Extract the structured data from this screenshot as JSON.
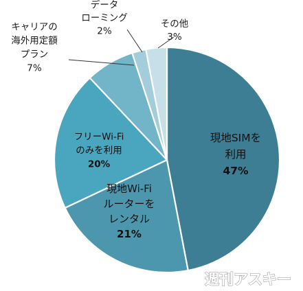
{
  "chart_data": {
    "type": "pie",
    "title": "",
    "start": "12 o'clock",
    "direction": "clockwise",
    "slices": [
      {
        "name": "現地SIMを利用",
        "label_lines": [
          "現地SIMを",
          "利用"
        ],
        "value": 47,
        "value_label": "47%",
        "color": "#3d7e94",
        "label_position": "inside"
      },
      {
        "name": "現地Wi-Fiルーターをレンタル",
        "label_lines": [
          "現地Wi-Fi",
          "ルーターを",
          "レンタル"
        ],
        "value": 21,
        "value_label": "21%",
        "color": "#4c97ad",
        "label_position": "inside"
      },
      {
        "name": "フリーWi-Fiのみを利用",
        "label_lines": [
          "フリーWi-Fi",
          "のみを利用"
        ],
        "value": 20,
        "value_label": "20%",
        "color": "#4aa6be",
        "label_position": "inside"
      },
      {
        "name": "キャリアの海外用定額プラン",
        "label_lines": [
          "キャリアの",
          "海外用定額",
          "プラン"
        ],
        "value": 7,
        "value_label": "7%",
        "color": "#72b4c8",
        "label_position": "outside"
      },
      {
        "name": "データローミング",
        "label_lines": [
          "データ",
          "ローミング"
        ],
        "value": 2,
        "value_label": "2%",
        "color": "#a3cddb",
        "label_position": "outside"
      },
      {
        "name": "その他",
        "label_lines": [
          "その他"
        ],
        "value": 3,
        "value_label": "3%",
        "color": "#c6dfe8",
        "label_position": "outside"
      }
    ]
  },
  "watermark": {
    "text": "週刊アスキー"
  }
}
